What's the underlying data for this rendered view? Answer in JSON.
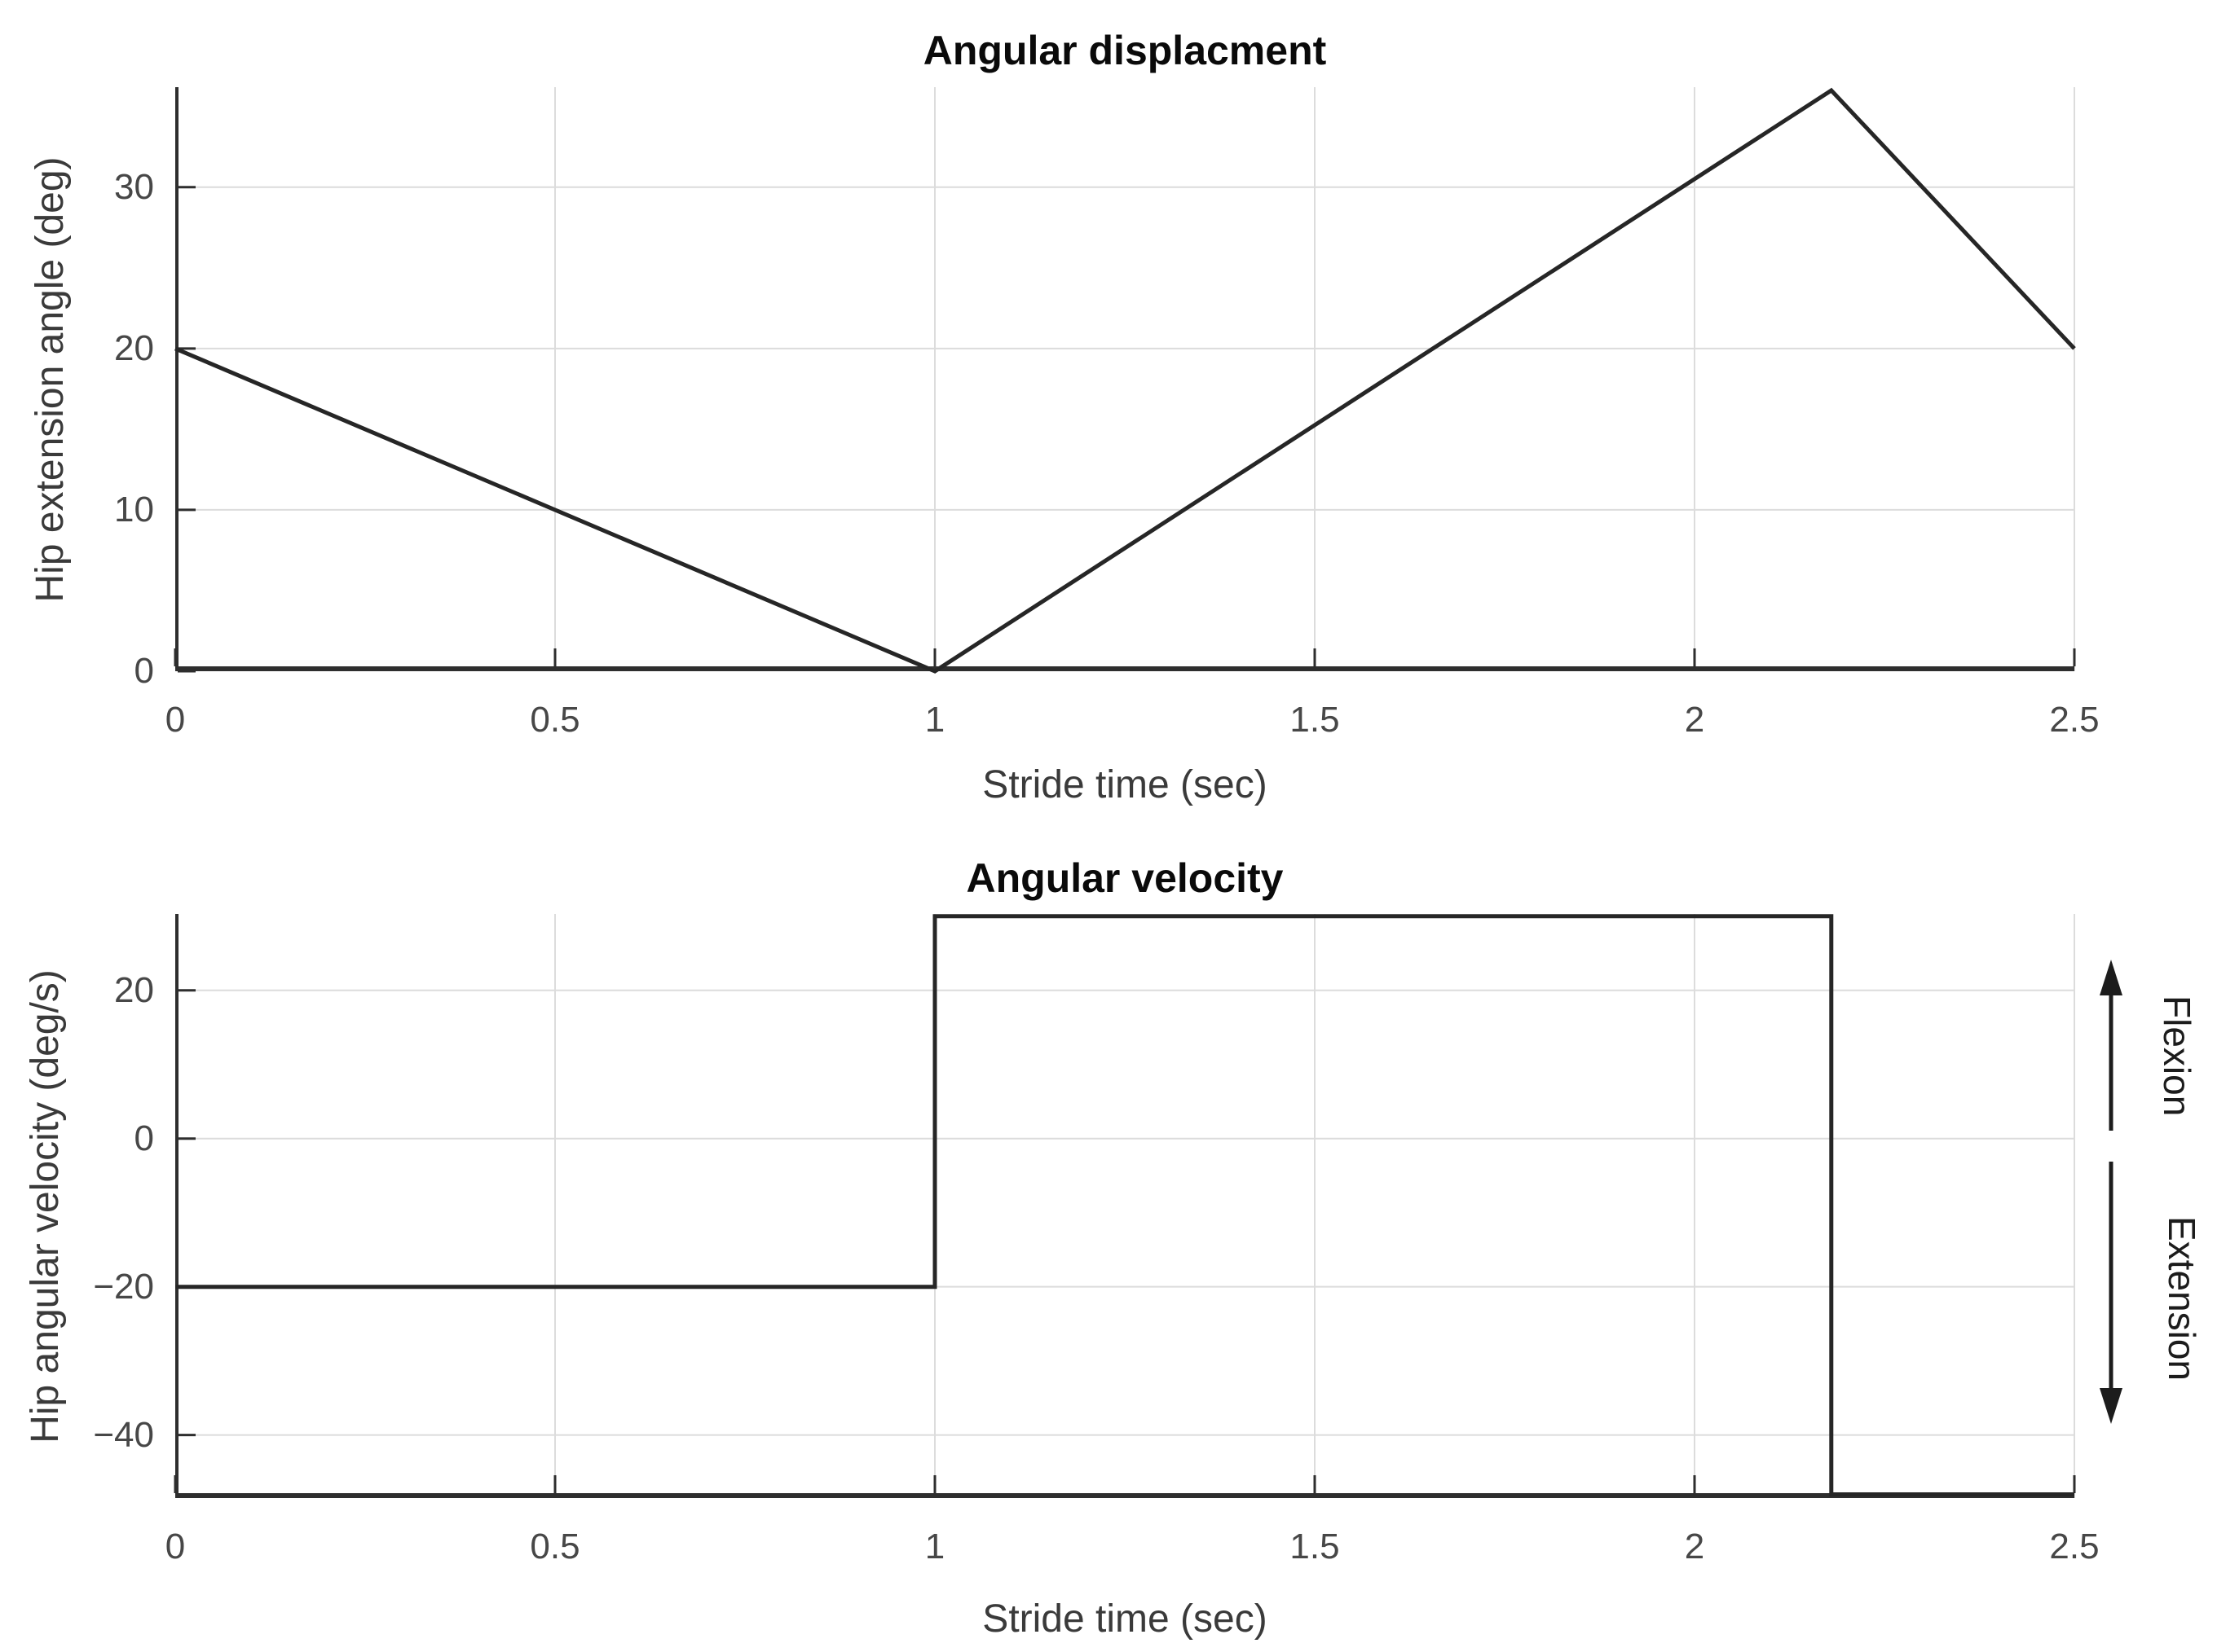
{
  "page": {
    "background": "#ffffff"
  },
  "chart_data": [
    {
      "type": "line",
      "title": "Angular displacment",
      "xlabel": "Stride time (sec)",
      "ylabel": "Hip extension angle (deg)",
      "xlim": [
        0,
        2.5
      ],
      "ylim": [
        0,
        36.2
      ],
      "xticks": [
        0,
        0.5,
        1,
        1.5,
        2,
        2.5
      ],
      "xtick_labels": [
        "0",
        "0.5",
        "1",
        "1.5",
        "2",
        "2.5"
      ],
      "yticks": [
        0,
        10,
        20,
        30
      ],
      "ytick_labels": [
        "0",
        "10",
        "20",
        "30"
      ],
      "grid": true,
      "legend": "none",
      "series": [
        {
          "name": "hip extension angle",
          "x": [
            0,
            1,
            2.18,
            2.5
          ],
          "y": [
            20,
            0,
            36,
            20
          ]
        }
      ]
    },
    {
      "type": "line",
      "title": "Angular velocity",
      "xlabel": "Stride time (sec)",
      "ylabel": "Hip angular velocity (deg/s)",
      "xlim": [
        0,
        2.5
      ],
      "ylim": [
        -48.5,
        30.3
      ],
      "xticks": [
        0,
        0.5,
        1,
        1.5,
        2,
        2.5
      ],
      "xtick_labels": [
        "0",
        "0.5",
        "1",
        "1.5",
        "2",
        "2.5"
      ],
      "yticks": [
        -40,
        -20,
        0,
        20
      ],
      "ytick_labels": [
        "−40",
        "−20",
        "0",
        "20"
      ],
      "grid": true,
      "legend": "none",
      "series": [
        {
          "name": "hip angular velocity",
          "x": [
            0,
            1,
            1,
            2.18,
            2.18,
            2.5
          ],
          "y": [
            -20,
            -20,
            30,
            30,
            -48,
            -48
          ]
        }
      ]
    }
  ],
  "annotations": {
    "flexion": "Flexion",
    "extension": "Extension"
  },
  "colors": {
    "title": "#0a0a0a",
    "axis_label": "#3a3a3a",
    "tick_label": "#474747",
    "grid": "#dcdcdc",
    "spine": "#2e2e2e",
    "line": "#262626",
    "annotation": "#1c1c1c"
  }
}
